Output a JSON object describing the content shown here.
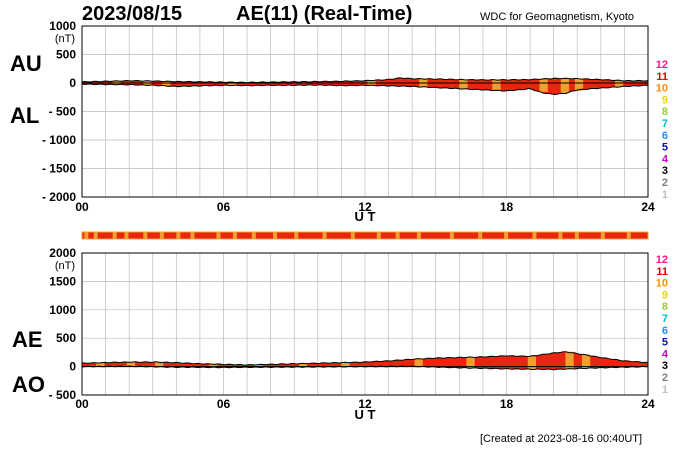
{
  "header": {
    "date": "2023/08/15",
    "title": "AE(11) (Real-Time)",
    "organization": "WDC for Geomagnetism, Kyoto"
  },
  "footer": {
    "created": "[Created at 2023-08-16 00:40UT]"
  },
  "colors": {
    "fill_main": "#e8260f",
    "fill_alt": "#f0a030",
    "grid": "#bbbbbb",
    "outline": "#000000"
  },
  "station_legend": {
    "labels": [
      "12",
      "11",
      "10",
      "9",
      "8",
      "7",
      "6",
      "5",
      "4",
      "3",
      "2",
      "1"
    ],
    "colors": [
      "#ff1493",
      "#dd0000",
      "#ff8c00",
      "#e6d800",
      "#9acd32",
      "#00c0c0",
      "#1e90ff",
      "#1010b0",
      "#cc00cc",
      "#000000",
      "#808080",
      "#c0c0c0"
    ]
  },
  "chart_data": [
    {
      "type": "area",
      "title": "",
      "labels": {
        "upper": "AU",
        "lower": "AL"
      },
      "xlabel": "U T",
      "ylabel": "(nT)",
      "x_ticks": [
        "00",
        "06",
        "12",
        "18",
        "24"
      ],
      "xlim": [
        0,
        24
      ],
      "y_ticks": [
        "1000",
        "500",
        "0",
        "- 500",
        "- 1000",
        "- 1500",
        "- 2000"
      ],
      "ylim": [
        -2000,
        1000
      ],
      "grid": true,
      "series": [
        {
          "name": "AU",
          "x": [
            0,
            1,
            2,
            3,
            4,
            5,
            6,
            7,
            8,
            9,
            10,
            11,
            12,
            13,
            13.5,
            14,
            15,
            16,
            17,
            18,
            19,
            20,
            20.5,
            21,
            22,
            23,
            24
          ],
          "values": [
            20,
            30,
            40,
            35,
            25,
            20,
            15,
            10,
            15,
            20,
            25,
            30,
            40,
            60,
            90,
            75,
            70,
            60,
            55,
            55,
            60,
            80,
            80,
            75,
            60,
            40,
            40
          ]
        },
        {
          "name": "AL",
          "x": [
            0,
            1,
            2,
            3,
            4,
            5,
            6,
            7,
            8,
            9,
            10,
            11,
            12,
            13,
            14,
            15,
            16,
            17,
            18,
            19,
            19.5,
            20,
            20.5,
            21,
            22,
            23,
            24
          ],
          "values": [
            -20,
            -25,
            -30,
            -40,
            -60,
            -50,
            -40,
            -45,
            -40,
            -40,
            -35,
            -45,
            -40,
            -50,
            -60,
            -80,
            -100,
            -120,
            -140,
            -100,
            -170,
            -200,
            -180,
            -120,
            -90,
            -60,
            -40
          ]
        }
      ]
    },
    {
      "type": "area",
      "title": "",
      "labels": {
        "upper": "AE",
        "lower": "AO"
      },
      "xlabel": "U T",
      "ylabel": "(nT)",
      "x_ticks": [
        "00",
        "06",
        "12",
        "18",
        "24"
      ],
      "xlim": [
        0,
        24
      ],
      "y_ticks": [
        "2000",
        "1500",
        "1000",
        "500",
        "0",
        "- 500"
      ],
      "ylim": [
        -500,
        2000
      ],
      "grid": true,
      "series": [
        {
          "name": "AE",
          "x": [
            0,
            1,
            2,
            3,
            4,
            5,
            6,
            7,
            8,
            9,
            10,
            11,
            12,
            13,
            14,
            15,
            16,
            17,
            18,
            19,
            20,
            20.5,
            21,
            22,
            23,
            24
          ],
          "values": [
            60,
            70,
            80,
            80,
            70,
            50,
            40,
            30,
            40,
            50,
            60,
            70,
            80,
            100,
            130,
            150,
            160,
            170,
            190,
            180,
            240,
            260,
            230,
            160,
            100,
            70
          ]
        },
        {
          "name": "AO",
          "x": [
            0,
            2,
            4,
            6,
            8,
            10,
            12,
            14,
            16,
            18,
            20,
            22,
            24
          ],
          "values": [
            0,
            5,
            -10,
            -15,
            -10,
            -5,
            0,
            5,
            -20,
            -40,
            -50,
            -20,
            0
          ]
        }
      ]
    }
  ]
}
